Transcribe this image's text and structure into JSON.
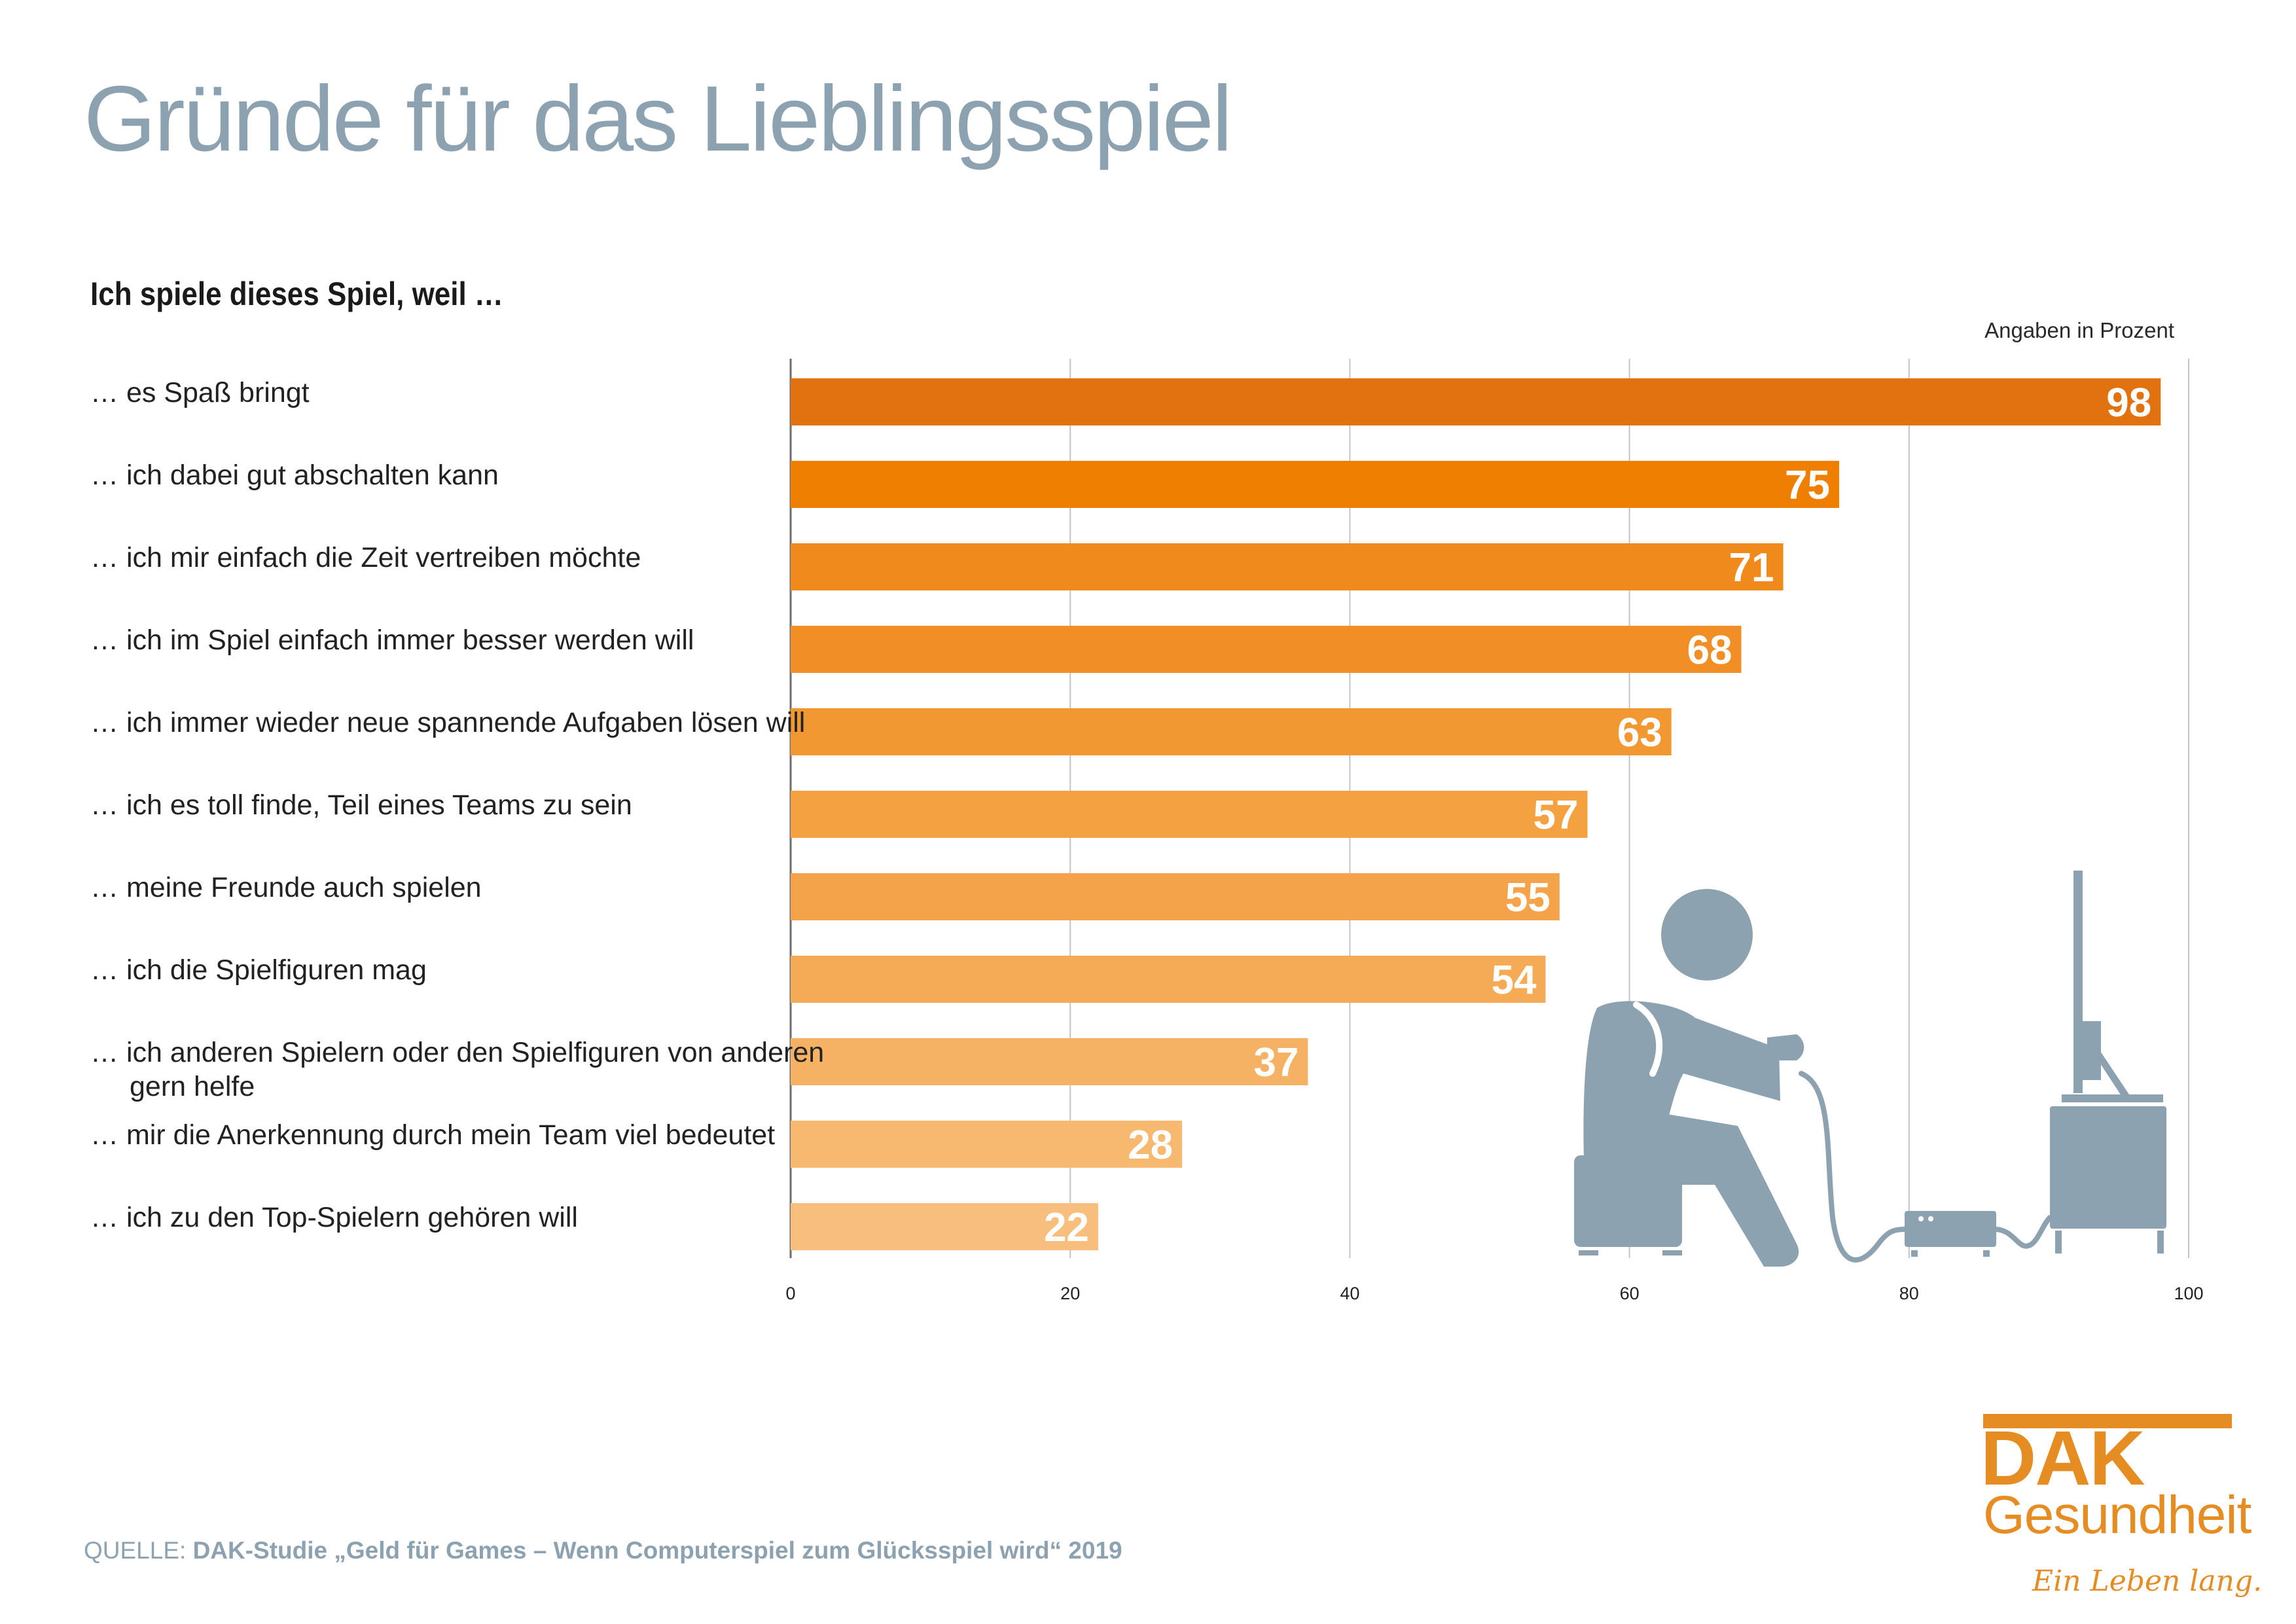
{
  "header": {
    "title": "Gründe für das Lieblingsspiel",
    "subtitle": "Ich spiele dieses Spiel, weil …",
    "units_note": "Angaben in Prozent"
  },
  "chart_data": {
    "type": "bar",
    "orientation": "horizontal",
    "categories": [
      "… es Spaß bringt",
      "… ich dabei gut abschalten kann",
      "… ich mir einfach die Zeit vertreiben möchte",
      "… ich im Spiel einfach immer besser werden will",
      "… ich immer wieder neue spannende Aufgaben lösen will",
      "… ich es toll finde, Teil eines Teams zu sein",
      "… meine Freunde auch spielen",
      "… ich die Spielfiguren mag",
      "… ich anderen Spielern oder den Spielfiguren von anderen gern helfe",
      "… mir die Anerkennung durch mein Team viel bedeutet",
      "… ich zu den Top-Spielern gehören will"
    ],
    "values": [
      98,
      75,
      71,
      68,
      63,
      57,
      55,
      54,
      37,
      28,
      22
    ],
    "bar_colors": [
      "#e2720f",
      "#ef7f00",
      "#f08a1c",
      "#f18f26",
      "#f29833",
      "#f4a141",
      "#f4a34a",
      "#f5aa55",
      "#f6b264",
      "#f7b870",
      "#f8be7d"
    ],
    "xlim": [
      0,
      100
    ],
    "xticks": [
      0,
      20,
      40,
      60,
      80,
      100
    ],
    "grid": true,
    "legend": "none"
  },
  "footer": {
    "source_prefix": "QUELLE:",
    "source_text": "DAK-Studie „Geld für Games – Wenn Computerspiel zum Glücksspiel wird“ 2019"
  },
  "logo": {
    "brand": "DAK",
    "name": "Gesundheit",
    "slogan": "Ein Leben lang.",
    "color": "#e58c22"
  },
  "illustration": {
    "icon": "gamer-pictogram-icon",
    "color": "#8da2b0"
  }
}
